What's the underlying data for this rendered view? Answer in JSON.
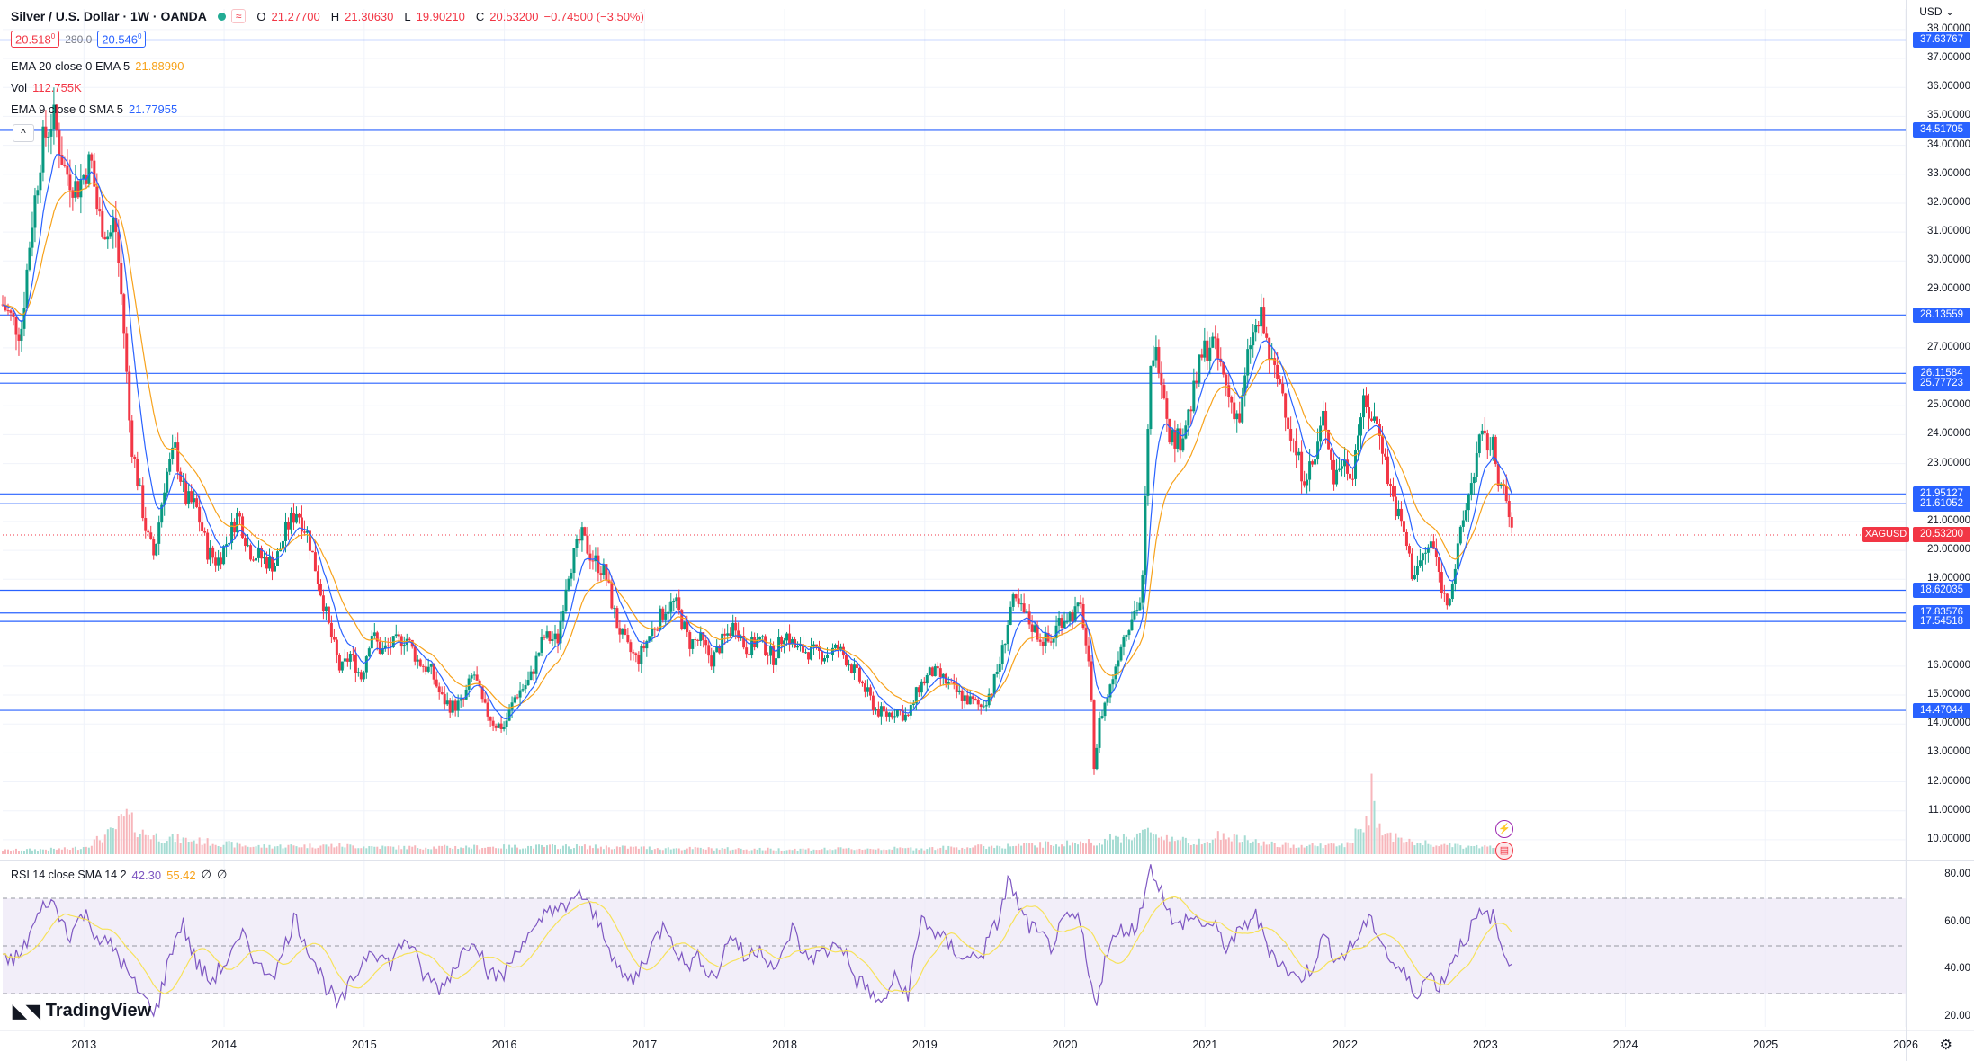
{
  "header": {
    "symbol_title": "Silver / U.S. Dollar · 1W · OANDA",
    "open_label": "O",
    "open_value": "21.27700",
    "high_label": "H",
    "high_value": "21.30630",
    "low_label": "L",
    "low_value": "19.90210",
    "close_label": "C",
    "close_value": "20.53200",
    "change": "−0.74500 (−3.50%)",
    "bid": "20.518",
    "bid_sup": "0",
    "spread": "280.0",
    "ask": "20.546",
    "ask_sup": "0"
  },
  "indicators": {
    "ema20_label": "EMA 20 close 0 EMA 5",
    "ema20_value": "21.88990",
    "vol_label": "Vol",
    "vol_value": "112.755K",
    "ema9_label": "EMA 9 close 0 SMA 5",
    "ema9_value": "21.77955",
    "rsi_label": "RSI 14 close SMA 14 2",
    "rsi_value": "42.30",
    "rsi_sma_value": "55.42",
    "rsi_extra1": "∅",
    "rsi_extra2": "∅"
  },
  "currency": "USD",
  "brand": "TradingView",
  "symbol_tag": "XAGUSD",
  "current_price_tag": "20.53200",
  "colors": {
    "up": "#089981",
    "down": "#f23645",
    "level_line": "#2962ff",
    "ema20": "#f7a21b",
    "ema9": "#2962ff",
    "rsi_line": "#7e57c2",
    "rsi_sma": "#f7e25a",
    "rsi_band": "#ede7f6"
  },
  "chart_data": {
    "type": "candlestick",
    "price_axis_ticks": [
      "38.00000",
      "37.00000",
      "36.00000",
      "35.00000",
      "34.00000",
      "33.00000",
      "32.00000",
      "31.00000",
      "30.00000",
      "29.00000",
      "27.00000",
      "25.00000",
      "24.00000",
      "23.00000",
      "21.00000",
      "20.00000",
      "19.00000",
      "16.00000",
      "15.00000",
      "14.00000",
      "13.00000",
      "12.00000",
      "11.00000",
      "10.00000"
    ],
    "price_range": [
      9.5,
      38.4
    ],
    "horizontal_levels": [
      "37.63767",
      "34.51705",
      "28.13559",
      "26.11584",
      "25.77723",
      "21.95127",
      "21.61052",
      "18.62035",
      "17.83576",
      "17.54518",
      "14.47044"
    ],
    "time_axis_labels": [
      "2013",
      "2014",
      "2015",
      "2016",
      "2017",
      "2018",
      "2019",
      "2020",
      "2021",
      "2022",
      "2023",
      "2024",
      "2025",
      "2026"
    ],
    "time_range": [
      2012.42,
      2026.0
    ],
    "rsi_axis_ticks": [
      "80.00",
      "60.00",
      "40.00",
      "20.00"
    ],
    "rsi_range": [
      16,
      84
    ],
    "rsi_band": [
      30,
      70
    ],
    "price_path": [
      [
        2012.42,
        28.5
      ],
      [
        2012.55,
        27.5
      ],
      [
        2012.62,
        31.0
      ],
      [
        2012.7,
        34.0
      ],
      [
        2012.78,
        35.0
      ],
      [
        2012.86,
        33.2
      ],
      [
        2012.95,
        32.5
      ],
      [
        2013.05,
        33.5
      ],
      [
        2013.1,
        31.6
      ],
      [
        2013.18,
        30.8
      ],
      [
        2013.22,
        31.5
      ],
      [
        2013.28,
        28.0
      ],
      [
        2013.33,
        24.0
      ],
      [
        2013.38,
        22.5
      ],
      [
        2013.45,
        20.5
      ],
      [
        2013.5,
        19.8
      ],
      [
        2013.58,
        22.5
      ],
      [
        2013.65,
        23.5
      ],
      [
        2013.72,
        21.8
      ],
      [
        2013.8,
        21.5
      ],
      [
        2013.88,
        20.0
      ],
      [
        2013.95,
        19.6
      ],
      [
        2014.02,
        20.3
      ],
      [
        2014.1,
        21.3
      ],
      [
        2014.18,
        20.0
      ],
      [
        2014.28,
        19.7
      ],
      [
        2014.36,
        19.5
      ],
      [
        2014.45,
        20.8
      ],
      [
        2014.52,
        21.4
      ],
      [
        2014.6,
        20.5
      ],
      [
        2014.68,
        18.8
      ],
      [
        2014.75,
        17.3
      ],
      [
        2014.83,
        15.8
      ],
      [
        2014.9,
        16.4
      ],
      [
        2014.98,
        15.6
      ],
      [
        2015.05,
        17.2
      ],
      [
        2015.12,
        16.5
      ],
      [
        2015.22,
        16.8
      ],
      [
        2015.3,
        17.0
      ],
      [
        2015.38,
        16.2
      ],
      [
        2015.48,
        15.8
      ],
      [
        2015.55,
        14.9
      ],
      [
        2015.62,
        14.6
      ],
      [
        2015.7,
        14.7
      ],
      [
        2015.78,
        15.8
      ],
      [
        2015.85,
        14.6
      ],
      [
        2015.93,
        14.0
      ],
      [
        2016.0,
        13.9
      ],
      [
        2016.08,
        15.0
      ],
      [
        2016.18,
        15.5
      ],
      [
        2016.28,
        17.0
      ],
      [
        2016.38,
        16.9
      ],
      [
        2016.45,
        19.2
      ],
      [
        2016.55,
        20.5
      ],
      [
        2016.62,
        19.8
      ],
      [
        2016.72,
        19.2
      ],
      [
        2016.8,
        17.5
      ],
      [
        2016.88,
        16.6
      ],
      [
        2016.95,
        16.2
      ],
      [
        2017.05,
        17.2
      ],
      [
        2017.15,
        18.0
      ],
      [
        2017.22,
        18.2
      ],
      [
        2017.32,
        16.8
      ],
      [
        2017.4,
        16.9
      ],
      [
        2017.48,
        16.2
      ],
      [
        2017.55,
        16.8
      ],
      [
        2017.65,
        17.5
      ],
      [
        2017.72,
        16.6
      ],
      [
        2017.82,
        16.9
      ],
      [
        2017.92,
        16.3
      ],
      [
        2018.0,
        17.2
      ],
      [
        2018.08,
        16.6
      ],
      [
        2018.18,
        16.5
      ],
      [
        2018.28,
        16.4
      ],
      [
        2018.38,
        16.6
      ],
      [
        2018.45,
        16.2
      ],
      [
        2018.55,
        15.4
      ],
      [
        2018.65,
        14.5
      ],
      [
        2018.72,
        14.3
      ],
      [
        2018.8,
        14.5
      ],
      [
        2018.88,
        14.2
      ],
      [
        2018.96,
        15.3
      ],
      [
        2019.05,
        15.8
      ],
      [
        2019.12,
        15.6
      ],
      [
        2019.22,
        15.1
      ],
      [
        2019.32,
        14.8
      ],
      [
        2019.4,
        14.6
      ],
      [
        2019.48,
        15.2
      ],
      [
        2019.55,
        16.4
      ],
      [
        2019.62,
        18.2
      ],
      [
        2019.68,
        18.0
      ],
      [
        2019.75,
        17.5
      ],
      [
        2019.82,
        17.0
      ],
      [
        2019.9,
        16.8
      ],
      [
        2019.96,
        17.6
      ],
      [
        2020.05,
        17.8
      ],
      [
        2020.12,
        18.0
      ],
      [
        2020.18,
        15.5
      ],
      [
        2020.21,
        12.5
      ],
      [
        2020.25,
        14.2
      ],
      [
        2020.32,
        15.2
      ],
      [
        2020.4,
        16.8
      ],
      [
        2020.48,
        17.8
      ],
      [
        2020.55,
        18.3
      ],
      [
        2020.58,
        22.5
      ],
      [
        2020.62,
        27.0
      ],
      [
        2020.68,
        26.5
      ],
      [
        2020.75,
        24.0
      ],
      [
        2020.82,
        23.8
      ],
      [
        2020.9,
        25.0
      ],
      [
        2020.98,
        26.8
      ],
      [
        2021.05,
        27.2
      ],
      [
        2021.1,
        26.5
      ],
      [
        2021.18,
        25.2
      ],
      [
        2021.25,
        24.5
      ],
      [
        2021.32,
        27.2
      ],
      [
        2021.4,
        28.0
      ],
      [
        2021.48,
        26.3
      ],
      [
        2021.55,
        25.6
      ],
      [
        2021.62,
        23.8
      ],
      [
        2021.7,
        22.6
      ],
      [
        2021.78,
        23.0
      ],
      [
        2021.85,
        24.8
      ],
      [
        2021.92,
        22.5
      ],
      [
        2021.98,
        23.1
      ],
      [
        2022.05,
        22.7
      ],
      [
        2022.12,
        25.0
      ],
      [
        2022.18,
        24.7
      ],
      [
        2022.25,
        24.2
      ],
      [
        2022.3,
        22.6
      ],
      [
        2022.36,
        21.5
      ],
      [
        2022.42,
        20.6
      ],
      [
        2022.48,
        19.2
      ],
      [
        2022.55,
        19.7
      ],
      [
        2022.62,
        20.3
      ],
      [
        2022.68,
        19.0
      ],
      [
        2022.72,
        18.1
      ],
      [
        2022.78,
        19.3
      ],
      [
        2022.85,
        21.2
      ],
      [
        2022.92,
        22.8
      ],
      [
        2022.96,
        23.8
      ],
      [
        2023.02,
        23.7
      ],
      [
        2023.06,
        23.5
      ],
      [
        2023.1,
        22.4
      ],
      [
        2023.14,
        21.8
      ],
      [
        2023.18,
        21.0
      ],
      [
        2023.2,
        20.53
      ]
    ],
    "volume_path": [
      [
        2012.42,
        0.8
      ],
      [
        2012.9,
        1.1
      ],
      [
        2013.0,
        1.5
      ],
      [
        2013.2,
        4.5
      ],
      [
        2013.3,
        8.0
      ],
      [
        2013.4,
        4.5
      ],
      [
        2013.55,
        3.5
      ],
      [
        2013.85,
        2.6
      ],
      [
        2014.2,
        1.6
      ],
      [
        2014.8,
        1.8
      ],
      [
        2015.2,
        1.4
      ],
      [
        2016.5,
        1.6
      ],
      [
        2017.2,
        1.2
      ],
      [
        2018.0,
        1.0
      ],
      [
        2019.0,
        1.2
      ],
      [
        2019.7,
        1.8
      ],
      [
        2020.2,
        2.5
      ],
      [
        2020.6,
        4.5
      ],
      [
        2020.9,
        2.4
      ],
      [
        2021.1,
        3.8
      ],
      [
        2021.5,
        1.9
      ],
      [
        2022.0,
        1.8
      ],
      [
        2022.17,
        6.8
      ],
      [
        2022.19,
        13.2
      ],
      [
        2022.25,
        4.8
      ],
      [
        2022.45,
        2.5
      ],
      [
        2022.8,
        1.6
      ],
      [
        2023.2,
        1.5
      ]
    ],
    "rsi_path": [
      [
        2012.42,
        43
      ],
      [
        2012.55,
        46
      ],
      [
        2012.65,
        60
      ],
      [
        2012.75,
        70
      ],
      [
        2012.9,
        55
      ],
      [
        2013.0,
        64
      ],
      [
        2013.12,
        52
      ],
      [
        2013.22,
        49
      ],
      [
        2013.33,
        36
      ],
      [
        2013.45,
        26
      ],
      [
        2013.52,
        23
      ],
      [
        2013.62,
        48
      ],
      [
        2013.7,
        60
      ],
      [
        2013.8,
        43
      ],
      [
        2013.9,
        35
      ],
      [
        2014.05,
        46
      ],
      [
        2014.15,
        55
      ],
      [
        2014.25,
        40
      ],
      [
        2014.38,
        40
      ],
      [
        2014.5,
        62
      ],
      [
        2014.62,
        47
      ],
      [
        2014.72,
        34
      ],
      [
        2014.82,
        24
      ],
      [
        2014.92,
        36
      ],
      [
        2015.05,
        50
      ],
      [
        2015.18,
        42
      ],
      [
        2015.3,
        54
      ],
      [
        2015.42,
        38
      ],
      [
        2015.55,
        32
      ],
      [
        2015.65,
        42
      ],
      [
        2015.78,
        55
      ],
      [
        2015.9,
        37
      ],
      [
        2016.0,
        38
      ],
      [
        2016.12,
        52
      ],
      [
        2016.22,
        55
      ],
      [
        2016.32,
        67
      ],
      [
        2016.45,
        64
      ],
      [
        2016.52,
        74
      ],
      [
        2016.6,
        66
      ],
      [
        2016.72,
        55
      ],
      [
        2016.82,
        38
      ],
      [
        2016.92,
        35
      ],
      [
        2017.05,
        50
      ],
      [
        2017.15,
        60
      ],
      [
        2017.28,
        42
      ],
      [
        2017.4,
        45
      ],
      [
        2017.5,
        36
      ],
      [
        2017.62,
        56
      ],
      [
        2017.72,
        44
      ],
      [
        2017.82,
        50
      ],
      [
        2017.95,
        39
      ],
      [
        2018.05,
        58
      ],
      [
        2018.15,
        45
      ],
      [
        2018.28,
        47
      ],
      [
        2018.4,
        52
      ],
      [
        2018.5,
        36
      ],
      [
        2018.6,
        32
      ],
      [
        2018.68,
        24
      ],
      [
        2018.78,
        36
      ],
      [
        2018.88,
        30
      ],
      [
        2018.98,
        62
      ],
      [
        2019.08,
        55
      ],
      [
        2019.18,
        50
      ],
      [
        2019.3,
        44
      ],
      [
        2019.42,
        48
      ],
      [
        2019.52,
        60
      ],
      [
        2019.6,
        78
      ],
      [
        2019.7,
        62
      ],
      [
        2019.8,
        55
      ],
      [
        2019.9,
        50
      ],
      [
        2020.0,
        60
      ],
      [
        2020.1,
        62
      ],
      [
        2020.18,
        34
      ],
      [
        2020.22,
        26
      ],
      [
        2020.3,
        48
      ],
      [
        2020.42,
        58
      ],
      [
        2020.5,
        56
      ],
      [
        2020.58,
        76
      ],
      [
        2020.62,
        83
      ],
      [
        2020.7,
        72
      ],
      [
        2020.78,
        57
      ],
      [
        2020.88,
        62
      ],
      [
        2020.98,
        60
      ],
      [
        2021.06,
        58
      ],
      [
        2021.15,
        50
      ],
      [
        2021.25,
        55
      ],
      [
        2021.35,
        64
      ],
      [
        2021.45,
        50
      ],
      [
        2021.55,
        42
      ],
      [
        2021.65,
        36
      ],
      [
        2021.75,
        40
      ],
      [
        2021.85,
        54
      ],
      [
        2021.95,
        44
      ],
      [
        2022.05,
        50
      ],
      [
        2022.15,
        60
      ],
      [
        2022.22,
        58
      ],
      [
        2022.32,
        44
      ],
      [
        2022.42,
        38
      ],
      [
        2022.5,
        30
      ],
      [
        2022.6,
        38
      ],
      [
        2022.68,
        33
      ],
      [
        2022.76,
        44
      ],
      [
        2022.86,
        54
      ],
      [
        2022.95,
        62
      ],
      [
        2023.05,
        63
      ],
      [
        2023.12,
        48
      ],
      [
        2023.2,
        42.3
      ]
    ]
  }
}
